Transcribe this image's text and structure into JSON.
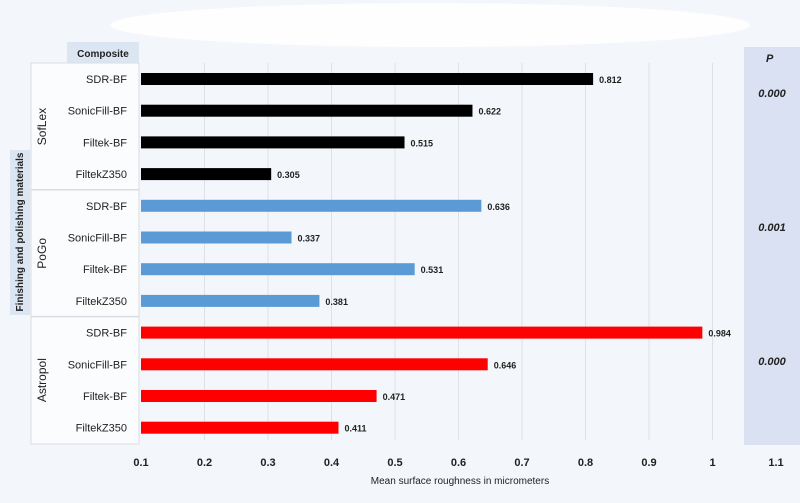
{
  "chart_data": {
    "type": "bar",
    "orientation": "horizontal",
    "xlabel": "Mean surface roughness in micrometers",
    "xlim": [
      0.1,
      1.1
    ],
    "xticks": [
      "0.1",
      "0.2",
      "0.3",
      "0.4",
      "0.5",
      "0.6",
      "0.7",
      "0.8",
      "0.9",
      "1",
      "1.1"
    ],
    "grid": true,
    "composite_header": "Composite",
    "group_axis_label": "Finishing and polishing materials",
    "p_header": "P",
    "groups": [
      {
        "name": "SofLex",
        "color": "#000000",
        "p": "0.000",
        "categories": [
          "SDR-BF",
          "SonicFill-BF",
          "Filtek-BF",
          "FiltekZ350"
        ],
        "values": [
          0.812,
          0.622,
          0.515,
          0.305
        ]
      },
      {
        "name": "PoGo",
        "color": "#5b9bd5",
        "p": "0.001",
        "categories": [
          "SDR-BF",
          "SonicFill-BF",
          "Filtek-BF",
          "FiltekZ350"
        ],
        "values": [
          0.636,
          0.337,
          0.531,
          0.381
        ]
      },
      {
        "name": "Astropol",
        "color": "#ff0000",
        "p": "0.000",
        "categories": [
          "SDR-BF",
          "SonicFill-BF",
          "Filtek-BF",
          "FiltekZ350"
        ],
        "values": [
          0.984,
          0.646,
          0.471,
          0.411
        ]
      }
    ]
  }
}
